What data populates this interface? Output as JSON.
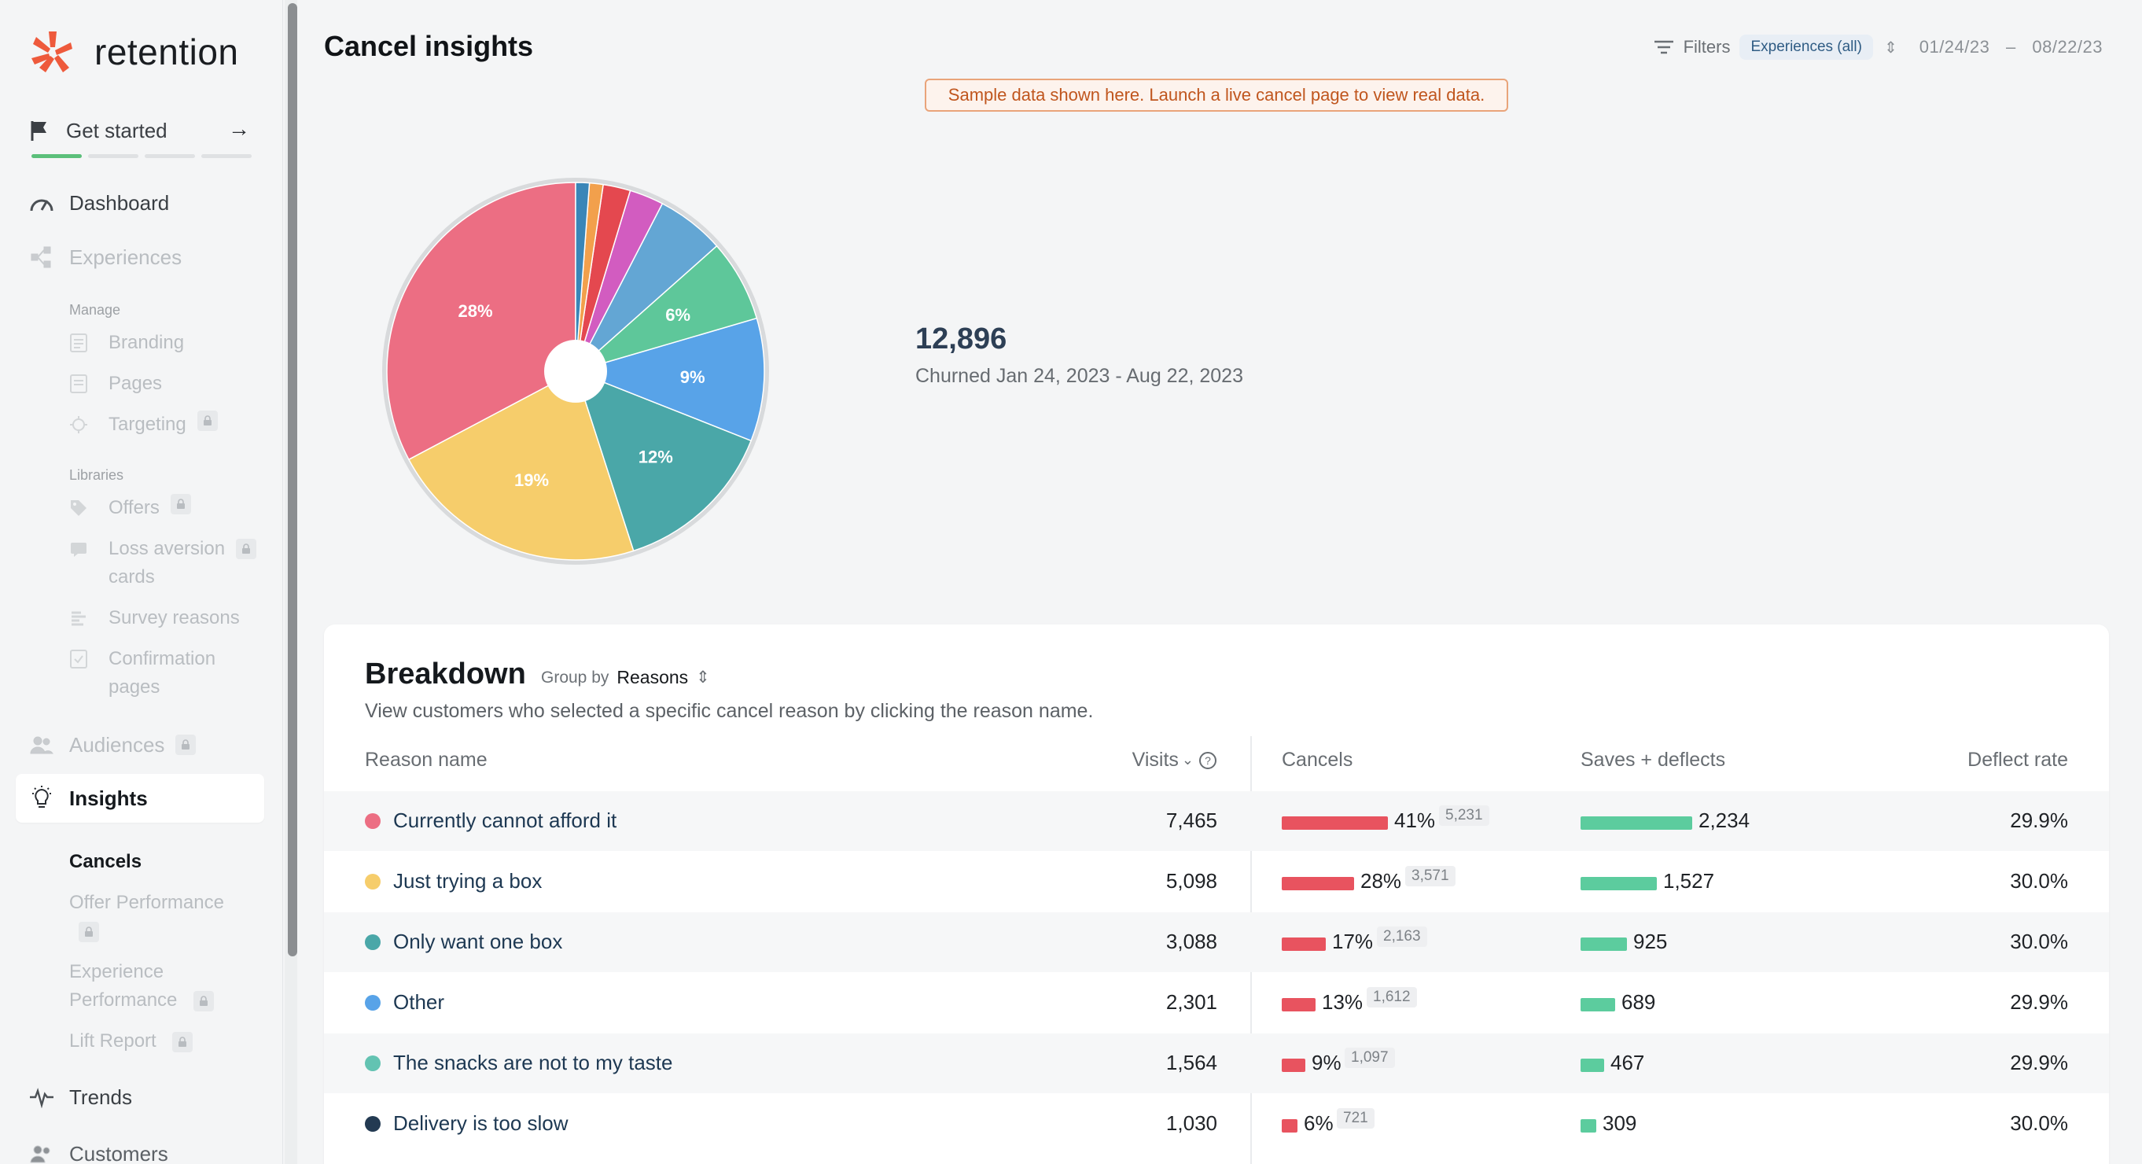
{
  "brand": {
    "name": "retention"
  },
  "sidebar": {
    "get_started": "Get started",
    "dashboard": "Dashboard",
    "experiences": "Experiences",
    "manage_label": "Manage",
    "branding": "Branding",
    "pages": "Pages",
    "targeting": "Targeting",
    "libraries_label": "Libraries",
    "offers": "Offers",
    "loss_aversion_1": "Loss aversion",
    "loss_aversion_2": "cards",
    "survey_reasons": "Survey reasons",
    "confirmation_1": "Confirmation",
    "confirmation_2": "pages",
    "audiences": "Audiences",
    "insights": "Insights",
    "cancels": "Cancels",
    "offer_performance": "Offer Performance",
    "experience_performance_1": "Experience",
    "experience_performance_2": "Performance",
    "lift_report": "Lift Report",
    "trends": "Trends",
    "customers": "Customers"
  },
  "header": {
    "title": "Cancel insights",
    "filters_label": "Filters",
    "filter_pill": "Experiences (all)",
    "date_start": "01/24/23",
    "date_sep": "–",
    "date_end": "08/22/23"
  },
  "notice": "Sample data shown here. Launch a live cancel page to view real data.",
  "summary": {
    "churned_count": "12,896",
    "churned_label": "Churned Jan 24, 2023 - Aug 22, 2023"
  },
  "chart_data": {
    "type": "pie",
    "slices": [
      {
        "value": 28,
        "label": "28%",
        "color": "#ec6e83"
      },
      {
        "value": 19,
        "label": "19%",
        "color": "#f6cd6b"
      },
      {
        "value": 12,
        "label": "12%",
        "color": "#4aa7a8"
      },
      {
        "value": 9,
        "label": "9%",
        "color": "#58a3e8"
      },
      {
        "value": 6,
        "label": "6%",
        "color": "#5ec79a"
      },
      {
        "value": 5,
        "label": "",
        "color": "#63a6d4"
      },
      {
        "value": 2.5,
        "label": "",
        "color": "#d25cc0"
      },
      {
        "value": 2,
        "label": "",
        "color": "#e4484f"
      },
      {
        "value": 1,
        "label": "",
        "color": "#f2a04c"
      },
      {
        "value": 1,
        "label": "",
        "color": "#3a86b8"
      }
    ]
  },
  "breakdown": {
    "title": "Breakdown",
    "group_by_label": "Group by",
    "group_by_value": "Reasons",
    "description": "View customers who selected a specific cancel reason by clicking the reason name.",
    "columns": {
      "reason": "Reason name",
      "visits": "Visits",
      "cancels": "Cancels",
      "saves": "Saves + deflects",
      "rate": "Deflect rate"
    },
    "rows": [
      {
        "color": "#ec6e83",
        "name": "Currently cannot afford it",
        "visits": "7,465",
        "cancel_pct": "41%",
        "cancel_fraction": 0.41,
        "cancel_count": "5,231",
        "saves": "2,234",
        "saves_value": 2234,
        "rate": "29.9%"
      },
      {
        "color": "#f6cd6b",
        "name": "Just trying a box",
        "visits": "5,098",
        "cancel_pct": "28%",
        "cancel_fraction": 0.28,
        "cancel_count": "3,571",
        "saves": "1,527",
        "saves_value": 1527,
        "rate": "30.0%"
      },
      {
        "color": "#4aa7a8",
        "name": "Only want one box",
        "visits": "3,088",
        "cancel_pct": "17%",
        "cancel_fraction": 0.17,
        "cancel_count": "2,163",
        "saves": "925",
        "saves_value": 925,
        "rate": "30.0%"
      },
      {
        "color": "#58a3e8",
        "name": "Other",
        "visits": "2,301",
        "cancel_pct": "13%",
        "cancel_fraction": 0.13,
        "cancel_count": "1,612",
        "saves": "689",
        "saves_value": 689,
        "rate": "29.9%"
      },
      {
        "color": "#63c3b2",
        "name": "The snacks are not to my taste",
        "visits": "1,564",
        "cancel_pct": "9%",
        "cancel_fraction": 0.09,
        "cancel_count": "1,097",
        "saves": "467",
        "saves_value": 467,
        "rate": "29.9%"
      },
      {
        "color": "#233a52",
        "name": "Delivery is too slow",
        "visits": "1,030",
        "cancel_pct": "6%",
        "cancel_fraction": 0.06,
        "cancel_count": "721",
        "saves": "309",
        "saves_value": 309,
        "rate": "30.0%"
      }
    ]
  }
}
